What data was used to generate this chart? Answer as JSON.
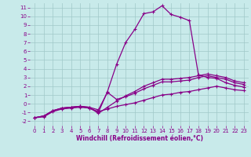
{
  "xlabel": "Windchill (Refroidissement éolien,°C)",
  "xlim": [
    -0.5,
    23.5
  ],
  "ylim": [
    -2.5,
    11.5
  ],
  "xticks": [
    0,
    1,
    2,
    3,
    4,
    5,
    6,
    7,
    8,
    9,
    10,
    11,
    12,
    13,
    14,
    15,
    16,
    17,
    18,
    19,
    20,
    21,
    22,
    23
  ],
  "yticks": [
    -2,
    -1,
    0,
    1,
    2,
    3,
    4,
    5,
    6,
    7,
    8,
    9,
    10,
    11
  ],
  "bg_color": "#c8eaea",
  "line_color": "#880088",
  "grid_color": "#a0c8c8",
  "lines": [
    [
      -1.6,
      -1.5,
      -0.9,
      -0.6,
      -0.5,
      -0.4,
      -0.5,
      -0.9,
      -0.6,
      -0.3,
      -0.1,
      0.1,
      0.4,
      0.7,
      1.0,
      1.1,
      1.3,
      1.4,
      1.6,
      1.8,
      2.0,
      1.8,
      1.6,
      1.5
    ],
    [
      -1.6,
      -1.4,
      -0.8,
      -0.5,
      -0.4,
      -0.3,
      -0.4,
      -0.7,
      1.3,
      0.5,
      0.8,
      1.2,
      1.7,
      2.1,
      2.5,
      2.5,
      2.6,
      2.7,
      3.0,
      3.2,
      3.0,
      2.8,
      2.4,
      2.2
    ],
    [
      -1.6,
      -1.4,
      -0.8,
      -0.5,
      -0.4,
      -0.3,
      -0.4,
      -1.1,
      -0.4,
      0.3,
      0.9,
      1.4,
      2.0,
      2.4,
      2.8,
      2.8,
      2.9,
      3.0,
      3.2,
      3.4,
      3.2,
      3.0,
      2.6,
      2.4
    ],
    [
      -1.6,
      -1.4,
      -0.8,
      -0.5,
      -0.4,
      -0.3,
      -0.5,
      -1.0,
      1.4,
      4.5,
      7.0,
      8.5,
      10.3,
      10.5,
      11.2,
      10.2,
      9.9,
      9.5,
      3.3,
      3.0,
      2.9,
      2.4,
      2.1,
      1.9
    ]
  ],
  "marker": "+",
  "markersize": 3,
  "linewidth": 0.9,
  "tick_fontsize": 5,
  "xlabel_fontsize": 5.5
}
